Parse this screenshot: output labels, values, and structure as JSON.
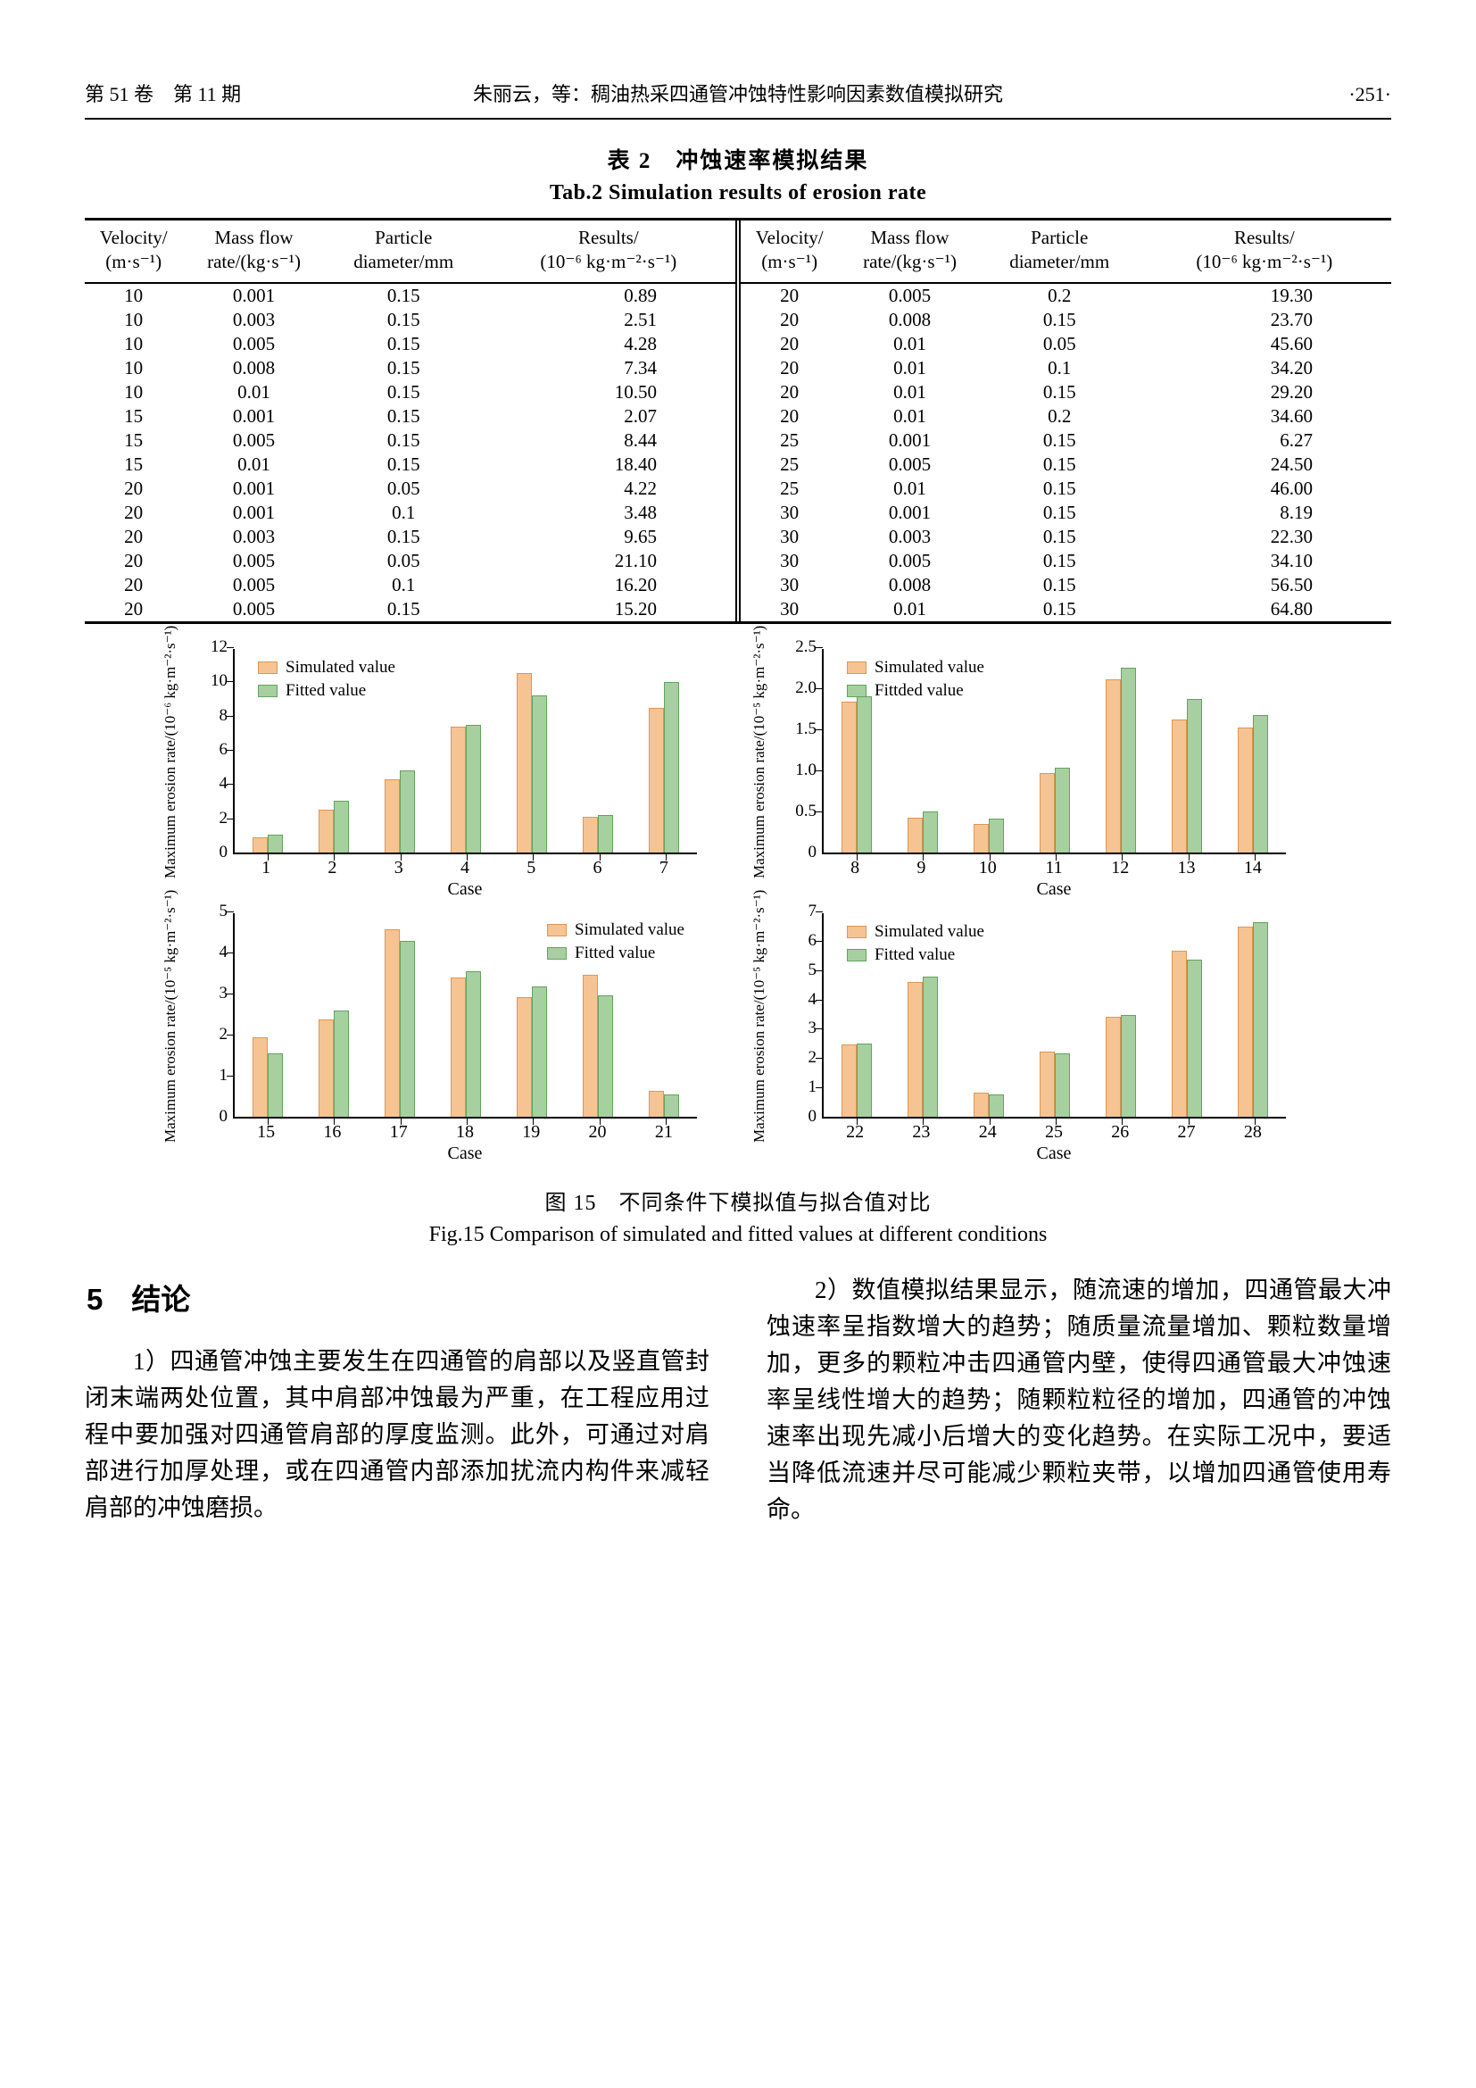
{
  "header": {
    "left": "第 51 卷　第 11 期",
    "center": "朱丽云，等：稠油热采四通管冲蚀特性影响因素数值模拟研究",
    "right": "·251·"
  },
  "table": {
    "title_zh": "表 2　冲蚀速率模拟结果",
    "title_en": "Tab.2 Simulation results of erosion rate",
    "headers": [
      {
        "key": "velocity",
        "line1": "Velocity/",
        "line2": "(m·s⁻¹)"
      },
      {
        "key": "mass-flow-rate",
        "line1": "Mass flow",
        "line2": "rate/(kg·s⁻¹)"
      },
      {
        "key": "particle-diameter",
        "line1": "Particle",
        "line2": "diameter/mm"
      },
      {
        "key": "results",
        "line1": "Results/",
        "line2": "(10⁻⁶ kg·m⁻²·s⁻¹)"
      }
    ],
    "left_rows": [
      [
        "10",
        "0.001",
        "0.15",
        "0.89"
      ],
      [
        "10",
        "0.003",
        "0.15",
        "2.51"
      ],
      [
        "10",
        "0.005",
        "0.15",
        "4.28"
      ],
      [
        "10",
        "0.008",
        "0.15",
        "7.34"
      ],
      [
        "10",
        "0.01",
        "0.15",
        "10.50"
      ],
      [
        "15",
        "0.001",
        "0.15",
        "2.07"
      ],
      [
        "15",
        "0.005",
        "0.15",
        "8.44"
      ],
      [
        "15",
        "0.01",
        "0.15",
        "18.40"
      ],
      [
        "20",
        "0.001",
        "0.05",
        "4.22"
      ],
      [
        "20",
        "0.001",
        "0.1",
        "3.48"
      ],
      [
        "20",
        "0.003",
        "0.15",
        "9.65"
      ],
      [
        "20",
        "0.005",
        "0.05",
        "21.10"
      ],
      [
        "20",
        "0.005",
        "0.1",
        "16.20"
      ],
      [
        "20",
        "0.005",
        "0.15",
        "15.20"
      ]
    ],
    "right_rows": [
      [
        "20",
        "0.005",
        "0.2",
        "19.30"
      ],
      [
        "20",
        "0.008",
        "0.15",
        "23.70"
      ],
      [
        "20",
        "0.01",
        "0.05",
        "45.60"
      ],
      [
        "20",
        "0.01",
        "0.1",
        "34.20"
      ],
      [
        "20",
        "0.01",
        "0.15",
        "29.20"
      ],
      [
        "20",
        "0.01",
        "0.2",
        "34.60"
      ],
      [
        "25",
        "0.001",
        "0.15",
        "6.27"
      ],
      [
        "25",
        "0.005",
        "0.15",
        "24.50"
      ],
      [
        "25",
        "0.01",
        "0.15",
        "46.00"
      ],
      [
        "30",
        "0.001",
        "0.15",
        "8.19"
      ],
      [
        "30",
        "0.003",
        "0.15",
        "22.30"
      ],
      [
        "30",
        "0.005",
        "0.15",
        "34.10"
      ],
      [
        "30",
        "0.008",
        "0.15",
        "56.50"
      ],
      [
        "30",
        "0.01",
        "0.15",
        "64.80"
      ]
    ]
  },
  "chart_data": [
    {
      "type": "bar",
      "categories": [
        "1",
        "2",
        "3",
        "4",
        "5",
        "6",
        "7"
      ],
      "series": [
        {
          "name": "Simulated value",
          "values": [
            0.89,
            2.51,
            4.28,
            7.34,
            10.5,
            2.07,
            8.44
          ]
        },
        {
          "name": "Fitted value",
          "values": [
            1.05,
            3.0,
            4.8,
            7.45,
            9.2,
            2.2,
            9.95
          ]
        }
      ],
      "xlabel": "Case",
      "ylabel": "Maximum erosion rate/(10⁻⁶ kg·m⁻²·s⁻¹)",
      "ylim": [
        0,
        12
      ],
      "yticks": [
        0,
        2,
        4,
        6,
        8,
        10,
        12
      ],
      "ytick_decimals": 0,
      "legend_pos": "top-left",
      "grid": false
    },
    {
      "type": "bar",
      "categories": [
        "8",
        "9",
        "10",
        "11",
        "12",
        "13",
        "14"
      ],
      "series": [
        {
          "name": "Simulated value",
          "values": [
            1.84,
            0.42,
            0.35,
            0.97,
            2.11,
            1.62,
            1.52
          ]
        },
        {
          "name": "Fittded value",
          "values": [
            1.9,
            0.5,
            0.41,
            1.03,
            2.25,
            1.87,
            1.67
          ]
        }
      ],
      "xlabel": "Case",
      "ylabel": "Maximum erosion rate/(10⁻⁵ kg·m⁻²·s⁻¹)",
      "ylim": [
        0,
        2.5
      ],
      "yticks": [
        0,
        0.5,
        1.0,
        1.5,
        2.0,
        2.5
      ],
      "ytick_decimals": 1,
      "legend_pos": "top-left",
      "grid": false
    },
    {
      "type": "bar",
      "categories": [
        "15",
        "16",
        "17",
        "18",
        "19",
        "20",
        "21"
      ],
      "series": [
        {
          "name": "Simulated value",
          "values": [
            1.93,
            2.37,
            4.56,
            3.4,
            2.92,
            3.46,
            0.63
          ]
        },
        {
          "name": "Fitted value",
          "values": [
            1.55,
            2.58,
            4.28,
            3.55,
            3.18,
            2.95,
            0.55
          ]
        }
      ],
      "xlabel": "Case",
      "ylabel": "Maximum erosion rate/(10⁻⁵ kg·m⁻²·s⁻¹)",
      "ylim": [
        0,
        5
      ],
      "yticks": [
        0,
        1,
        2,
        3,
        4,
        5
      ],
      "ytick_decimals": 0,
      "legend_pos": "top-right",
      "grid": false
    },
    {
      "type": "bar",
      "categories": [
        "22",
        "23",
        "24",
        "25",
        "26",
        "27",
        "28"
      ],
      "series": [
        {
          "name": "Simulated value",
          "values": [
            2.45,
            4.6,
            0.82,
            2.23,
            3.41,
            5.65,
            6.48
          ]
        },
        {
          "name": "Fitted value",
          "values": [
            2.5,
            4.78,
            0.75,
            2.15,
            3.47,
            5.35,
            6.62
          ]
        }
      ],
      "xlabel": "Case",
      "ylabel": "Maximum erosion rate/(10⁻⁵ kg·m⁻²·s⁻¹)",
      "ylim": [
        0,
        7
      ],
      "yticks": [
        0,
        1,
        2,
        3,
        4,
        5,
        6,
        7
      ],
      "ytick_decimals": 0,
      "legend_pos": "top-left",
      "grid": false
    }
  ],
  "figure": {
    "caption_zh": "图 15　不同条件下模拟值与拟合值对比",
    "caption_en": "Fig.15 Comparison of simulated and fitted values at different conditions"
  },
  "conclusion": {
    "section_number": "5",
    "section_title": "结论",
    "para1": "1）四通管冲蚀主要发生在四通管的肩部以及竖直管封闭末端两处位置，其中肩部冲蚀最为严重，在工程应用过程中要加强对四通管肩部的厚度监测。此外，可通过对肩部进行加厚处理，或在四通管内部添加扰流内构件来减轻肩部的冲蚀磨损。",
    "para2": "2）数值模拟结果显示，随流速的增加，四通管最大冲蚀速率呈指数增大的趋势；随质量流量增加、颗粒数量增加，更多的颗粒冲击四通管内壁，使得四通管最大冲蚀速率呈线性增大的趋势；随颗粒粒径的增加，四通管的冲蚀速率出现先减小后增大的变化趋势。在实际工况中，要适当降低流速并尽可能减少颗粒夹带，以增加四通管使用寿命。"
  },
  "colors": {
    "simulated_fill": "#F6C493",
    "simulated_border": "#DF9552",
    "fitted_fill": "#A6D0A0",
    "fitted_border": "#63A25D"
  }
}
